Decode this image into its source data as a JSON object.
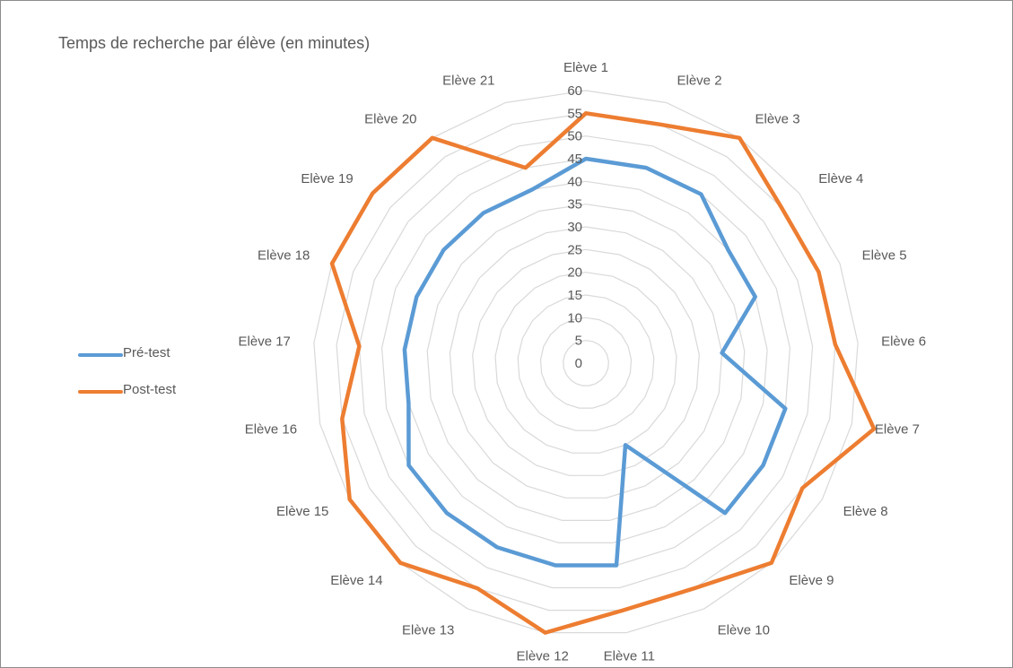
{
  "chart_data": {
    "type": "radar",
    "title": "Temps de recherche par élève (en minutes)",
    "categories": [
      "Elève 1",
      "Elève 2",
      "Elève 3",
      "Elève 4",
      "Elève 5",
      "Elève 6",
      "Elève 7",
      "Elève 8",
      "Elève 9",
      "Elève 10",
      "Elève 11",
      "Elève 12",
      "Elève 13",
      "Elève 14",
      "Elève 15",
      "Elève 16",
      "Elève 17",
      "Elève 18",
      "Elève 19",
      "Elève 20",
      "Elève 21"
    ],
    "series": [
      {
        "name": "Pré-test",
        "color": "#5b9bd5",
        "values": [
          45,
          45,
          45,
          40,
          40,
          30,
          45,
          45,
          45,
          20,
          45,
          45,
          45,
          45,
          45,
          40,
          40,
          40,
          40,
          40,
          40
        ]
      },
      {
        "name": "Post-test",
        "color": "#ed7d31",
        "values": [
          55,
          55,
          60,
          55,
          55,
          55,
          65,
          55,
          60,
          55,
          55,
          60,
          55,
          60,
          60,
          55,
          50,
          60,
          60,
          60,
          45
        ]
      }
    ],
    "r_ticks": [
      "0",
      "5",
      "10",
      "15",
      "20",
      "25",
      "30",
      "35",
      "40",
      "45",
      "50",
      "55",
      "60"
    ],
    "rlim": [
      0,
      60
    ],
    "grid": true,
    "legend_position": "left"
  }
}
